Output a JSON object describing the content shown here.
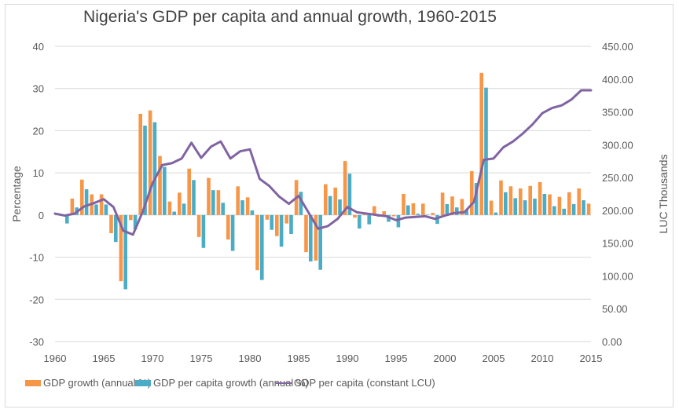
{
  "chart_data": {
    "type": "bar+line",
    "title": "Nigeria's GDP per capita and annual growth, 1960-2015",
    "ylabel": "Percentage",
    "y2label": "LUC Thousands",
    "xlabel": "",
    "ylim": [
      -30,
      40
    ],
    "y2lim": [
      0,
      450
    ],
    "yticks": [
      "40",
      "30",
      "20",
      "10",
      "0",
      "-10",
      "-20",
      "-30"
    ],
    "y2ticks": [
      "450.00",
      "400.00",
      "350.00",
      "300.00",
      "250.00",
      "200.00",
      "150.00",
      "100.00",
      "50.00",
      "0.00"
    ],
    "xticks": [
      "1960",
      "1965",
      "1970",
      "1975",
      "1980",
      "1985",
      "1990",
      "1995",
      "2000",
      "2005",
      "2010",
      "2015"
    ],
    "grid": true,
    "legend_position": "bottom",
    "x": [
      1960,
      1961,
      1962,
      1963,
      1964,
      1965,
      1966,
      1967,
      1968,
      1969,
      1970,
      1971,
      1972,
      1973,
      1974,
      1975,
      1976,
      1977,
      1978,
      1979,
      1980,
      1981,
      1982,
      1983,
      1984,
      1985,
      1986,
      1987,
      1988,
      1989,
      1990,
      1991,
      1992,
      1993,
      1994,
      1995,
      1996,
      1997,
      1998,
      1999,
      2000,
      2001,
      2002,
      2003,
      2004,
      2005,
      2006,
      2007,
      2008,
      2009,
      2010,
      2011,
      2012,
      2013,
      2014,
      2015
    ],
    "series": [
      {
        "name": "GDP growth (annual %)",
        "type": "bar",
        "axis": "left",
        "color": "#F79646",
        "values": [
          null,
          0.0,
          3.9,
          8.4,
          4.9,
          4.9,
          -4.3,
          -15.7,
          -1.2,
          24.0,
          24.8,
          14.0,
          3.2,
          5.3,
          11.0,
          -5.2,
          8.8,
          5.9,
          -5.8,
          6.8,
          4.2,
          -13.1,
          -1.1,
          -5.0,
          -2.0,
          8.3,
          -8.8,
          -10.8,
          7.3,
          6.5,
          12.8,
          -0.6,
          0.4,
          2.1,
          0.9,
          -0.3,
          5.0,
          2.8,
          2.7,
          0.5,
          5.3,
          4.4,
          3.8,
          10.4,
          33.7,
          3.4,
          8.2,
          6.8,
          6.3,
          6.9,
          7.8,
          4.9,
          4.3,
          5.4,
          6.3,
          2.7
        ]
      },
      {
        "name": "GDP per capita growth (annual %)",
        "type": "bar",
        "axis": "left",
        "color": "#4BACC6",
        "values": [
          null,
          -2.0,
          1.8,
          6.1,
          2.5,
          2.5,
          -6.4,
          -17.6,
          -3.4,
          21.2,
          22.0,
          11.4,
          0.8,
          2.7,
          8.3,
          -7.8,
          5.9,
          2.9,
          -8.5,
          3.5,
          1.1,
          -15.4,
          -3.5,
          -7.5,
          -4.5,
          5.5,
          -11.0,
          -13.0,
          4.5,
          3.7,
          9.8,
          -3.2,
          -2.2,
          -0.4,
          -1.6,
          -2.9,
          2.3,
          0.3,
          0.1,
          -2.1,
          2.6,
          1.8,
          1.2,
          7.6,
          30.2,
          0.6,
          5.4,
          4.0,
          3.5,
          3.9,
          5.0,
          2.1,
          1.5,
          2.6,
          3.5,
          null
        ]
      },
      {
        "name": "GDP per capita (constant LCU)",
        "type": "line",
        "axis": "right",
        "color": "#8064A2",
        "values": [
          195,
          192,
          195,
          206,
          211,
          217,
          205,
          169,
          163,
          198,
          241,
          269,
          272,
          279,
          303,
          280,
          297,
          305,
          279,
          290,
          293,
          248,
          237,
          221,
          210,
          222,
          197,
          172,
          176,
          187,
          205,
          197,
          195,
          193,
          191,
          185,
          189,
          190,
          191,
          187,
          192,
          196,
          197,
          213,
          277,
          279,
          296,
          305,
          317,
          331,
          348,
          356,
          360,
          369,
          383,
          383
        ]
      }
    ]
  }
}
